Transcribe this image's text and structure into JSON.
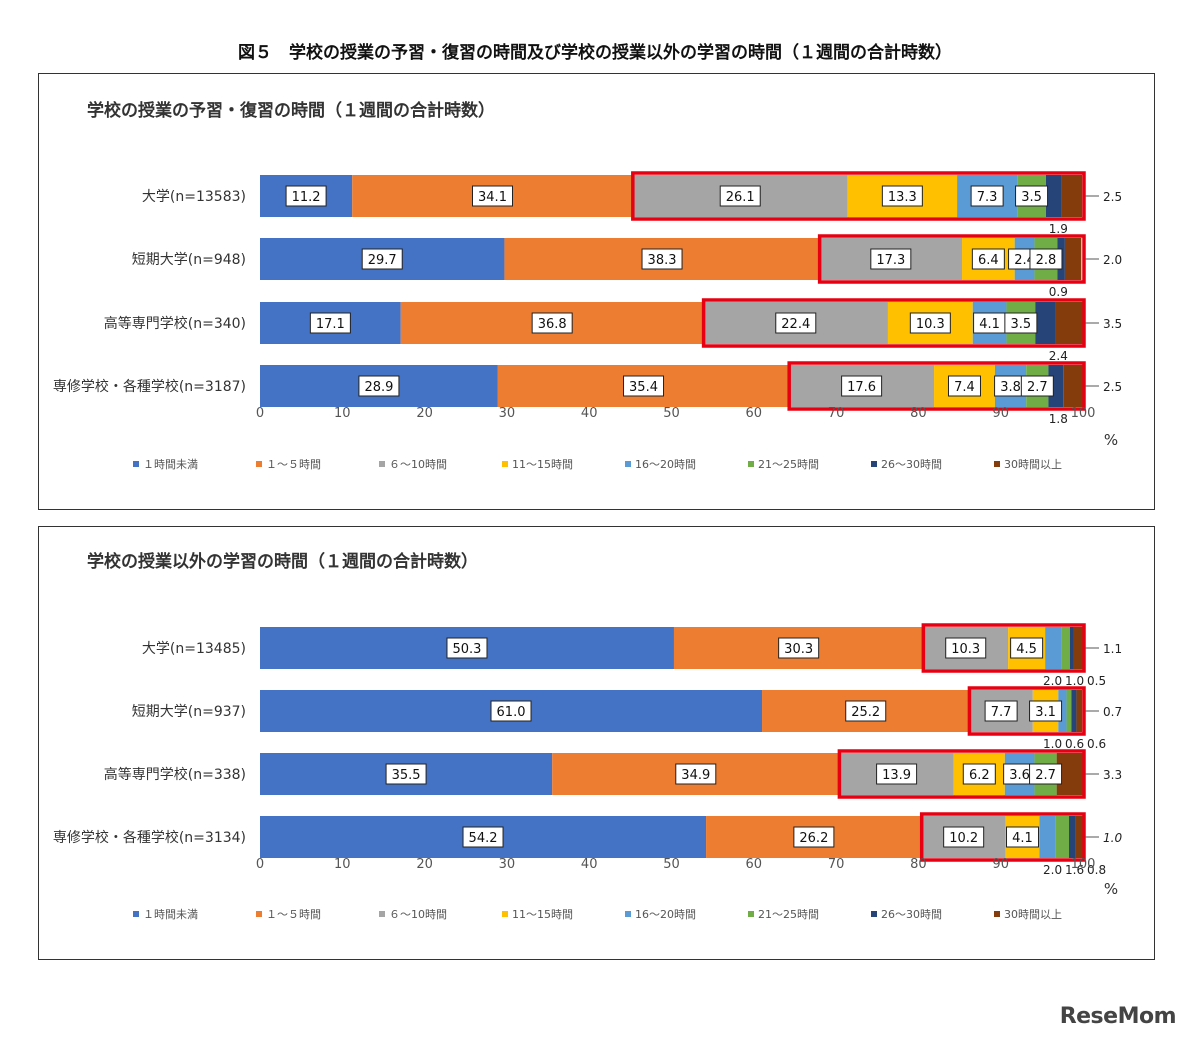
{
  "figure_title": "図５　学校の授業の予習・復習の時間及び学校の授業以外の学習の時間（１週間の合計時数）",
  "watermark": "ReseMom",
  "legend": [
    {
      "label": "１時間未満",
      "color": "#4472c4"
    },
    {
      "label": "１～５時間",
      "color": "#ed7d31"
    },
    {
      "label": "６～10時間",
      "color": "#a5a5a5"
    },
    {
      "label": "11～15時間",
      "color": "#ffc000"
    },
    {
      "label": "16～20時間",
      "color": "#5b9bd5"
    },
    {
      "label": "21～25時間",
      "color": "#70ad47"
    },
    {
      "label": "26～30時間",
      "color": "#264478"
    },
    {
      "label": "30時間以上",
      "color": "#843c0c"
    }
  ],
  "highlight_color": "#e60012",
  "chart_data": [
    {
      "type": "bar",
      "orientation": "horizontal-stacked",
      "title": "学校の授業の予習・復習の時間（１週間の合計時数）",
      "x_unit": "%",
      "xlim": [
        0,
        100
      ],
      "x_ticks": [
        "0",
        "10",
        "20",
        "30",
        "40",
        "50",
        "60",
        "70",
        "80",
        "90",
        "100"
      ],
      "legend_position": "bottom",
      "categories": [
        "大学(n=13583)",
        "短期大学(n=948)",
        "高等専門学校(n=340)",
        "専修学校・各種学校(n=3187)"
      ],
      "series": [
        {
          "name": "１時間未満",
          "values": [
            11.2,
            29.7,
            17.1,
            28.9
          ]
        },
        {
          "name": "１～５時間",
          "values": [
            34.1,
            38.3,
            36.8,
            35.4
          ]
        },
        {
          "name": "６～10時間",
          "values": [
            26.1,
            17.3,
            22.4,
            17.6
          ]
        },
        {
          "name": "11～15時間",
          "values": [
            13.3,
            6.4,
            10.3,
            7.4
          ]
        },
        {
          "name": "16～20時間",
          "values": [
            7.3,
            2.4,
            4.1,
            3.8
          ]
        },
        {
          "name": "21～25時間",
          "values": [
            3.5,
            2.8,
            3.5,
            2.7
          ]
        },
        {
          "name": "26～30時間",
          "values": [
            1.9,
            0.9,
            2.4,
            1.8
          ]
        },
        {
          "name": "30時間以上",
          "values": [
            2.5,
            2.0,
            3.5,
            2.5
          ]
        }
      ],
      "inside_labels": [
        [
          "11.2",
          "34.1",
          "26.1",
          "13.3",
          "7.3",
          "3.5",
          "",
          ""
        ],
        [
          "29.7",
          "38.3",
          "17.3",
          "6.4",
          "2.4",
          "2.8",
          "",
          ""
        ],
        [
          "17.1",
          "36.8",
          "22.4",
          "10.3",
          "4.1",
          "3.5",
          "",
          ""
        ],
        [
          "28.9",
          "35.4",
          "17.6",
          "7.4",
          "3.8",
          "2.7",
          "",
          ""
        ]
      ],
      "right_labels": [
        "2.5",
        "2.0",
        "3.5",
        "2.5"
      ],
      "below_labels": [
        [
          "1.9"
        ],
        [
          "0.9"
        ],
        [
          "2.4"
        ],
        [
          "1.8"
        ]
      ],
      "highlight_from_series": 2
    },
    {
      "type": "bar",
      "orientation": "horizontal-stacked",
      "title": "学校の授業以外の学習の時間（１週間の合計時数）",
      "x_unit": "%",
      "xlim": [
        0,
        100
      ],
      "x_ticks": [
        "0",
        "10",
        "20",
        "30",
        "40",
        "50",
        "60",
        "70",
        "80",
        "90",
        "100"
      ],
      "legend_position": "bottom",
      "categories": [
        "大学(n=13485)",
        "短期大学(n=937)",
        "高等専門学校(n=338)",
        "専修学校・各種学校(n=3134)"
      ],
      "series": [
        {
          "name": "１時間未満",
          "values": [
            50.3,
            61.0,
            35.5,
            54.2
          ]
        },
        {
          "name": "１～５時間",
          "values": [
            30.3,
            25.2,
            34.9,
            26.2
          ]
        },
        {
          "name": "６～10時間",
          "values": [
            10.3,
            7.7,
            13.9,
            10.2
          ]
        },
        {
          "name": "11～15時間",
          "values": [
            4.5,
            3.1,
            6.2,
            4.1
          ]
        },
        {
          "name": "16～20時間",
          "values": [
            2.0,
            1.0,
            3.6,
            2.0
          ]
        },
        {
          "name": "21～25時間",
          "values": [
            1.0,
            0.6,
            2.7,
            1.6
          ]
        },
        {
          "name": "26～30時間",
          "values": [
            0.5,
            0.6,
            0.0,
            0.8
          ]
        },
        {
          "name": "30時間以上",
          "values": [
            1.1,
            0.7,
            3.3,
            1.0
          ]
        }
      ],
      "inside_labels": [
        [
          "50.3",
          "30.3",
          "10.3",
          "4.5",
          "",
          "",
          "",
          ""
        ],
        [
          "61.0",
          "25.2",
          "7.7",
          "3.1",
          "",
          "",
          "",
          ""
        ],
        [
          "35.5",
          "34.9",
          "13.9",
          "6.2",
          "3.6",
          "2.7",
          "",
          ""
        ],
        [
          "54.2",
          "26.2",
          "10.2",
          "4.1",
          "",
          "",
          "",
          ""
        ]
      ],
      "right_labels": [
        "1.1",
        "0.7",
        "3.3",
        "1.0"
      ],
      "below_labels": [
        [
          "2.0",
          "1.0",
          "0.5"
        ],
        [
          "1.0",
          "0.6",
          "0.6"
        ],
        [],
        [
          "2.0",
          "1.6",
          "0.8"
        ]
      ],
      "highlight_from_series": 2
    }
  ]
}
